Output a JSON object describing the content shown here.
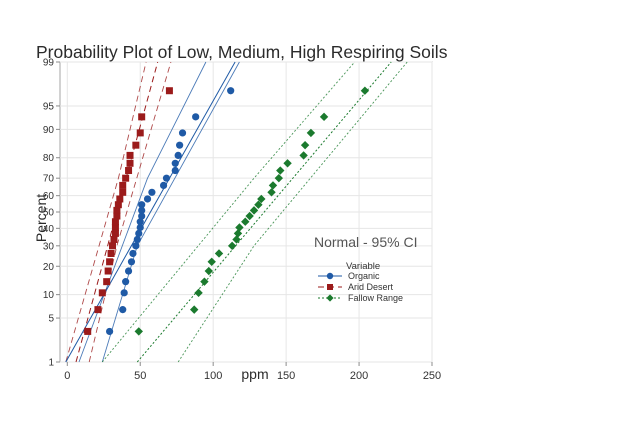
{
  "chart_data": {
    "type": "scatter",
    "title": "Probability Plot of Low, Medium, High Respiring Soils",
    "xlabel": "ppm",
    "ylabel": "Percent",
    "xlim": [
      -5,
      250
    ],
    "y_scale": "normal-probability",
    "ylim": [
      1,
      99
    ],
    "x_ticks": [
      0,
      50,
      100,
      150,
      200,
      250
    ],
    "y_ticks": [
      1,
      5,
      10,
      20,
      30,
      40,
      50,
      60,
      70,
      80,
      90,
      95,
      99
    ],
    "grid": true,
    "annotation": "Normal - 95% CI",
    "legend": {
      "title": "Variable",
      "placement": "right"
    },
    "series": [
      {
        "name": "Organic",
        "marker": "circle",
        "color": "#1f5aa6",
        "points": [
          [
            29,
            3.2
          ],
          [
            38,
            6.5
          ],
          [
            39,
            10.5
          ],
          [
            40,
            14
          ],
          [
            42,
            18
          ],
          [
            44,
            22
          ],
          [
            45,
            26
          ],
          [
            47,
            30
          ],
          [
            48,
            33.5
          ],
          [
            49,
            37
          ],
          [
            50,
            40.5
          ],
          [
            50,
            44
          ],
          [
            51,
            47.5
          ],
          [
            51,
            51
          ],
          [
            51,
            54.5
          ],
          [
            55,
            58
          ],
          [
            58,
            62
          ],
          [
            66,
            66
          ],
          [
            68,
            70
          ],
          [
            74,
            74
          ],
          [
            74,
            77.5
          ],
          [
            76,
            81
          ],
          [
            77,
            85
          ],
          [
            79,
            89
          ],
          [
            88,
            93
          ],
          [
            112,
            97
          ]
        ],
        "fit_line": [
          [
            -1,
            1
          ],
          [
            115,
            99
          ]
        ],
        "ci_lower": [
          [
            24,
            1
          ],
          [
            48,
            30
          ],
          [
            118,
            99
          ]
        ],
        "ci_upper": [
          [
            8,
            1
          ],
          [
            55,
            70
          ],
          [
            95,
            99
          ]
        ]
      },
      {
        "name": "Arid Desert",
        "marker": "square",
        "color": "#9b1b1b",
        "points": [
          [
            14,
            3.2
          ],
          [
            21,
            6.5
          ],
          [
            24,
            10.5
          ],
          [
            27,
            14
          ],
          [
            28,
            18
          ],
          [
            29,
            22
          ],
          [
            30,
            26
          ],
          [
            31,
            30
          ],
          [
            32,
            33.5
          ],
          [
            33,
            37
          ],
          [
            33,
            40.5
          ],
          [
            33,
            44
          ],
          [
            34,
            47.5
          ],
          [
            34,
            51
          ],
          [
            35,
            54.5
          ],
          [
            36,
            58
          ],
          [
            38,
            62
          ],
          [
            38,
            66
          ],
          [
            40,
            70
          ],
          [
            42,
            74
          ],
          [
            43,
            77.5
          ],
          [
            43,
            81
          ],
          [
            47,
            85
          ],
          [
            50,
            89
          ],
          [
            51,
            93
          ],
          [
            70,
            97
          ]
        ],
        "fit_line": [
          [
            6,
            1
          ],
          [
            62,
            99
          ]
        ],
        "ci_lower": [
          [
            15,
            1
          ],
          [
            34,
            30
          ],
          [
            71,
            99
          ]
        ],
        "ci_upper": [
          [
            -1,
            1
          ],
          [
            35,
            70
          ],
          [
            54,
            99
          ]
        ]
      },
      {
        "name": "Fallow Range",
        "marker": "diamond",
        "color": "#1b7a2e",
        "points": [
          [
            49,
            3.2
          ],
          [
            87,
            6.5
          ],
          [
            90,
            10.5
          ],
          [
            94,
            14
          ],
          [
            97,
            18
          ],
          [
            99,
            22
          ],
          [
            104,
            26
          ],
          [
            113,
            30
          ],
          [
            116,
            33.5
          ],
          [
            117,
            37
          ],
          [
            118,
            40.5
          ],
          [
            122,
            44
          ],
          [
            125,
            47.5
          ],
          [
            128,
            51
          ],
          [
            131,
            54.5
          ],
          [
            133,
            58
          ],
          [
            140,
            62
          ],
          [
            141,
            66
          ],
          [
            145,
            70
          ],
          [
            146,
            74
          ],
          [
            151,
            77.5
          ],
          [
            162,
            81
          ],
          [
            163,
            85
          ],
          [
            167,
            89
          ],
          [
            176,
            93
          ],
          [
            204,
            97
          ]
        ],
        "fit_line": [
          [
            48,
            1
          ],
          [
            222,
            99
          ]
        ],
        "ci_lower": [
          [
            76,
            1
          ],
          [
            128,
            30
          ],
          [
            233,
            99
          ]
        ],
        "ci_upper": [
          [
            24,
            1
          ],
          [
            128,
            70
          ],
          [
            197,
            99
          ]
        ]
      }
    ]
  }
}
